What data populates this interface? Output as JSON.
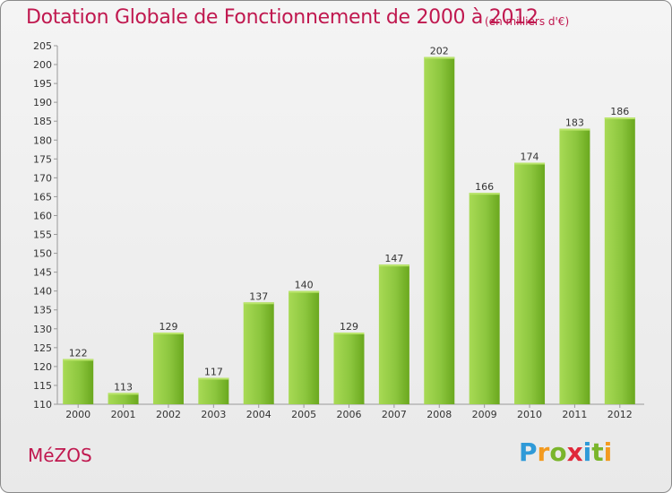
{
  "header": {
    "title": "Dotation Globale de Fonctionnement de 2000 à 2012",
    "subtitle": "(en milliers d'€)"
  },
  "footer": {
    "place": "MéZOS",
    "logo_text": "Proxiti"
  },
  "colors": {
    "title": "#c0184f",
    "bar_light": "#9fd34e",
    "bar_dark": "#66a41a",
    "axis_text": "#333333"
  },
  "chart_data": {
    "type": "bar",
    "title": "Dotation Globale de Fonctionnement de 2000 à 2012",
    "subtitle": "(en milliers d'€)",
    "categories": [
      "2000",
      "2001",
      "2002",
      "2003",
      "2004",
      "2005",
      "2006",
      "2007",
      "2008",
      "2009",
      "2010",
      "2011",
      "2012"
    ],
    "values": [
      122,
      113,
      129,
      117,
      137,
      140,
      129,
      147,
      202,
      166,
      174,
      183,
      186
    ],
    "ylim": [
      110,
      205
    ],
    "ytick_step": 5,
    "grid": false,
    "legend": "none"
  }
}
